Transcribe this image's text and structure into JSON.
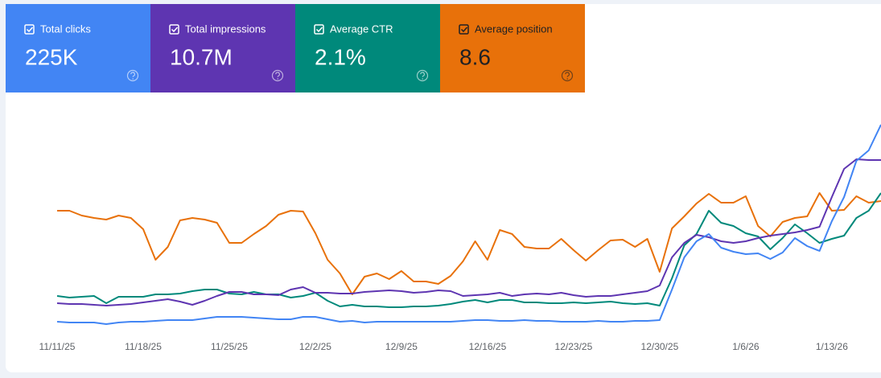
{
  "chart_data": {
    "type": "line",
    "categories": [
      "11/11/25",
      null,
      null,
      null,
      null,
      null,
      null,
      "11/18/25",
      null,
      null,
      null,
      null,
      null,
      null,
      "11/25/25",
      null,
      null,
      null,
      null,
      null,
      null,
      "12/2/25",
      null,
      null,
      null,
      null,
      null,
      null,
      "12/9/25",
      null,
      null,
      null,
      null,
      null,
      null,
      "12/16/25",
      null,
      null,
      null,
      null,
      null,
      null,
      "12/23/25",
      null,
      null,
      null,
      null,
      null,
      null,
      "12/30/25",
      null,
      null,
      null,
      null,
      null,
      null,
      "1/6/26",
      null,
      null,
      null,
      null,
      null,
      null,
      "1/13/26",
      null,
      null,
      null,
      null
    ],
    "ylim": [
      0,
      310
    ],
    "grid": false,
    "series": [
      {
        "name": "Total clicks",
        "summary": "225K",
        "color": "#4285f4",
        "card_text_color": "#ffffff",
        "values": [
          30,
          29,
          29,
          29,
          27,
          29,
          30,
          30,
          31,
          32,
          32,
          32,
          34,
          36,
          36,
          36,
          35,
          34,
          33,
          33,
          36,
          36,
          33,
          30,
          31,
          29,
          30,
          30,
          30,
          30,
          30,
          30,
          30,
          31,
          32,
          32,
          31,
          31,
          32,
          31,
          31,
          30,
          30,
          30,
          31,
          30,
          30,
          31,
          31,
          32,
          70,
          110,
          130,
          139,
          122,
          117,
          114,
          115,
          108,
          116,
          134,
          124,
          118,
          155,
          185,
          230,
          243,
          275
        ]
      },
      {
        "name": "Total impressions",
        "summary": "10.7M",
        "color": "#5e35b1",
        "card_text_color": "#ffffff",
        "values": [
          53,
          52,
          52,
          51,
          50,
          51,
          52,
          54,
          56,
          58,
          55,
          51,
          56,
          62,
          67,
          67,
          64,
          64,
          63,
          70,
          73,
          66,
          66,
          65,
          65,
          67,
          68,
          69,
          68,
          66,
          67,
          69,
          68,
          62,
          63,
          64,
          66,
          62,
          64,
          65,
          64,
          66,
          63,
          61,
          62,
          62,
          64,
          66,
          68,
          75,
          110,
          128,
          138,
          135,
          130,
          128,
          130,
          134,
          137,
          139,
          141,
          144,
          148,
          185,
          220,
          232,
          231,
          231
        ]
      },
      {
        "name": "Average CTR",
        "summary": "2.1%",
        "color": "#00897b",
        "card_text_color": "#ffffff",
        "values": [
          62,
          60,
          61,
          62,
          53,
          61,
          61,
          61,
          64,
          64,
          65,
          68,
          70,
          70,
          65,
          64,
          67,
          64,
          64,
          60,
          62,
          66,
          56,
          49,
          51,
          49,
          49,
          48,
          48,
          49,
          49,
          50,
          52,
          55,
          57,
          54,
          57,
          57,
          54,
          54,
          53,
          53,
          54,
          53,
          54,
          55,
          53,
          52,
          53,
          50,
          84,
          125,
          139,
          168,
          153,
          149,
          140,
          136,
          120,
          134,
          151,
          140,
          128,
          133,
          137,
          159,
          168,
          190
        ]
      },
      {
        "name": "Average position",
        "summary": "8.6",
        "color": "#e8710a",
        "card_text_color": "#202124",
        "values": [
          168,
          168,
          162,
          159,
          157,
          162,
          159,
          145,
          107,
          123,
          156,
          159,
          157,
          153,
          128,
          128,
          139,
          149,
          163,
          168,
          167,
          140,
          107,
          90,
          64,
          86,
          90,
          83,
          93,
          80,
          80,
          77,
          87,
          105,
          130,
          107,
          144,
          139,
          123,
          121,
          121,
          133,
          119,
          106,
          119,
          131,
          132,
          123,
          133,
          92,
          146,
          161,
          177,
          189,
          178,
          178,
          186,
          149,
          136,
          154,
          159,
          161,
          190,
          168,
          169,
          186,
          178,
          180
        ]
      }
    ]
  }
}
